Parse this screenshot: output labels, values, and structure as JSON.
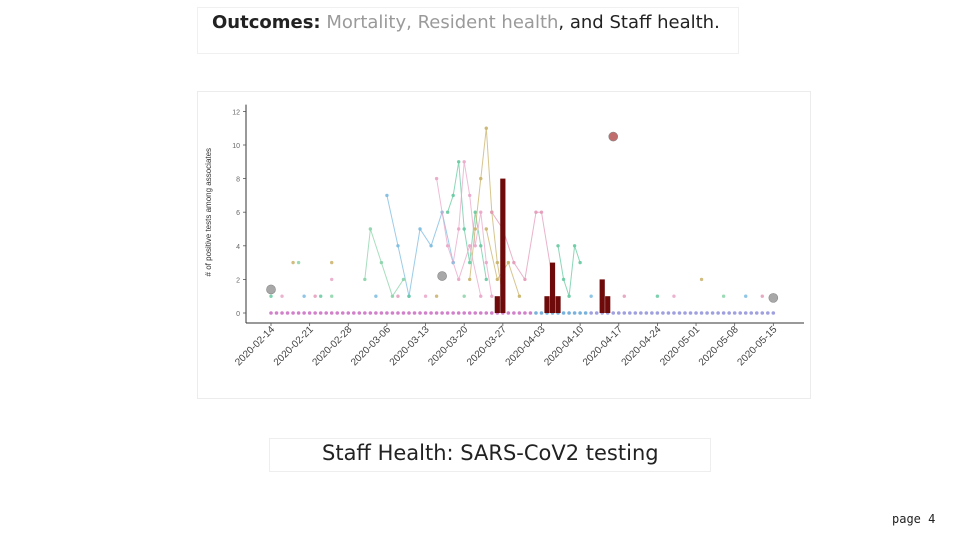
{
  "header": {
    "label": "Outcomes:",
    "item1": "Mortality",
    "sep1": ",",
    "item2": "Resident health",
    "sep2": ", and",
    "item3": "Staff health",
    "end": "."
  },
  "caption": "Staff Health: SARS-CoV2 testing",
  "page_label": "page 4",
  "chart_data": {
    "type": "scatter",
    "ylabel": "# of positive tests among associates",
    "ylim": [
      0,
      12
    ],
    "yticks": [
      0,
      2,
      4,
      6,
      8,
      10,
      12
    ],
    "xlim": [
      "2020-02-09",
      "2020-05-18"
    ],
    "xticks": [
      "2020-02-14",
      "2020-02-21",
      "2020-02-28",
      "2020-03-06",
      "2020-03-13",
      "2020-03-20",
      "2020-03-27",
      "2020-04-03",
      "2020-04-10",
      "2020-04-17",
      "2020-04-24",
      "2020-05-01",
      "2020-05-08",
      "2020-05-15"
    ],
    "grid": false,
    "legend": "none",
    "colors": {
      "bar": "#6e0a0a",
      "event_gray": "#a8a8a8",
      "event_red": "#c26d6d",
      "baseline_dots": [
        "#c96bc0",
        "#8e8fd8",
        "#5fa3d6"
      ],
      "series": [
        "#66c9a0",
        "#e9a6c8",
        "#c9b26a",
        "#8bd3a8",
        "#7bbbe0",
        "#e39ab8"
      ]
    },
    "bars": [
      {
        "x": "2020-03-26",
        "y": 1
      },
      {
        "x": "2020-03-27",
        "y": 8
      },
      {
        "x": "2020-04-04",
        "y": 1
      },
      {
        "x": "2020-04-05",
        "y": 3
      },
      {
        "x": "2020-04-06",
        "y": 1
      },
      {
        "x": "2020-04-14",
        "y": 2
      },
      {
        "x": "2020-04-15",
        "y": 1
      }
    ],
    "events": [
      {
        "x": "2020-02-14",
        "y": 1.4,
        "color": "gray"
      },
      {
        "x": "2020-03-16",
        "y": 2.2,
        "color": "gray"
      },
      {
        "x": "2020-04-16",
        "y": 10.5,
        "color": "red"
      },
      {
        "x": "2020-05-15",
        "y": 0.9,
        "color": "gray"
      }
    ],
    "series": [
      {
        "points": [
          {
            "x": "2020-03-17",
            "y": 6
          },
          {
            "x": "2020-03-18",
            "y": 7
          },
          {
            "x": "2020-03-19",
            "y": 9
          },
          {
            "x": "2020-03-20",
            "y": 5
          },
          {
            "x": "2020-03-21",
            "y": 3
          },
          {
            "x": "2020-03-22",
            "y": 6
          },
          {
            "x": "2020-03-23",
            "y": 4
          },
          {
            "x": "2020-03-24",
            "y": 2
          }
        ]
      },
      {
        "points": [
          {
            "x": "2020-03-18",
            "y": 3
          },
          {
            "x": "2020-03-19",
            "y": 5
          },
          {
            "x": "2020-03-20",
            "y": 9
          },
          {
            "x": "2020-03-21",
            "y": 7
          },
          {
            "x": "2020-03-22",
            "y": 4
          },
          {
            "x": "2020-03-23",
            "y": 6
          },
          {
            "x": "2020-03-24",
            "y": 3
          },
          {
            "x": "2020-03-25",
            "y": 1
          }
        ]
      },
      {
        "points": [
          {
            "x": "2020-03-21",
            "y": 2
          },
          {
            "x": "2020-03-22",
            "y": 5
          },
          {
            "x": "2020-03-23",
            "y": 8
          },
          {
            "x": "2020-03-24",
            "y": 11
          },
          {
            "x": "2020-03-25",
            "y": 6
          },
          {
            "x": "2020-03-26",
            "y": 3
          },
          {
            "x": "2020-03-27",
            "y": 1
          }
        ]
      },
      {
        "points": [
          {
            "x": "2020-03-02",
            "y": 2
          },
          {
            "x": "2020-03-03",
            "y": 5
          },
          {
            "x": "2020-03-05",
            "y": 3
          },
          {
            "x": "2020-03-07",
            "y": 1
          },
          {
            "x": "2020-03-09",
            "y": 2
          }
        ]
      },
      {
        "points": [
          {
            "x": "2020-03-06",
            "y": 7
          },
          {
            "x": "2020-03-08",
            "y": 4
          },
          {
            "x": "2020-03-10",
            "y": 1
          },
          {
            "x": "2020-03-12",
            "y": 5
          },
          {
            "x": "2020-03-14",
            "y": 4
          },
          {
            "x": "2020-03-16",
            "y": 6
          },
          {
            "x": "2020-03-18",
            "y": 3
          }
        ]
      },
      {
        "points": [
          {
            "x": "2020-03-25",
            "y": 6
          },
          {
            "x": "2020-03-27",
            "y": 5
          },
          {
            "x": "2020-03-29",
            "y": 3
          },
          {
            "x": "2020-03-31",
            "y": 2
          },
          {
            "x": "2020-04-02",
            "y": 6
          },
          {
            "x": "2020-04-03",
            "y": 6
          },
          {
            "x": "2020-04-05",
            "y": 2
          }
        ]
      },
      {
        "points": [
          {
            "x": "2020-04-06",
            "y": 4
          },
          {
            "x": "2020-04-07",
            "y": 2
          },
          {
            "x": "2020-04-08",
            "y": 1
          },
          {
            "x": "2020-04-09",
            "y": 4
          },
          {
            "x": "2020-04-10",
            "y": 3
          }
        ]
      },
      {
        "points": [
          {
            "x": "2020-03-15",
            "y": 8
          },
          {
            "x": "2020-03-17",
            "y": 4
          },
          {
            "x": "2020-03-19",
            "y": 2
          },
          {
            "x": "2020-03-21",
            "y": 4
          },
          {
            "x": "2020-03-23",
            "y": 1
          }
        ]
      },
      {
        "points": [
          {
            "x": "2020-03-24",
            "y": 5
          },
          {
            "x": "2020-03-26",
            "y": 2
          },
          {
            "x": "2020-03-28",
            "y": 3
          },
          {
            "x": "2020-03-30",
            "y": 1
          }
        ]
      }
    ],
    "scatter": [
      {
        "x": "2020-02-14",
        "y": 1
      },
      {
        "x": "2020-02-16",
        "y": 1
      },
      {
        "x": "2020-02-18",
        "y": 3
      },
      {
        "x": "2020-02-19",
        "y": 3
      },
      {
        "x": "2020-02-20",
        "y": 1
      },
      {
        "x": "2020-02-22",
        "y": 1
      },
      {
        "x": "2020-02-23",
        "y": 1
      },
      {
        "x": "2020-02-25",
        "y": 2
      },
      {
        "x": "2020-02-25",
        "y": 3
      },
      {
        "x": "2020-02-25",
        "y": 1
      },
      {
        "x": "2020-03-04",
        "y": 1
      },
      {
        "x": "2020-03-08",
        "y": 1
      },
      {
        "x": "2020-03-10",
        "y": 1
      },
      {
        "x": "2020-03-13",
        "y": 1
      },
      {
        "x": "2020-03-15",
        "y": 1
      },
      {
        "x": "2020-03-20",
        "y": 1
      },
      {
        "x": "2020-04-12",
        "y": 1
      },
      {
        "x": "2020-04-18",
        "y": 1
      },
      {
        "x": "2020-04-24",
        "y": 1
      },
      {
        "x": "2020-04-27",
        "y": 1
      },
      {
        "x": "2020-05-02",
        "y": 2
      },
      {
        "x": "2020-05-06",
        "y": 1
      },
      {
        "x": "2020-05-10",
        "y": 1
      },
      {
        "x": "2020-05-13",
        "y": 1
      }
    ]
  }
}
